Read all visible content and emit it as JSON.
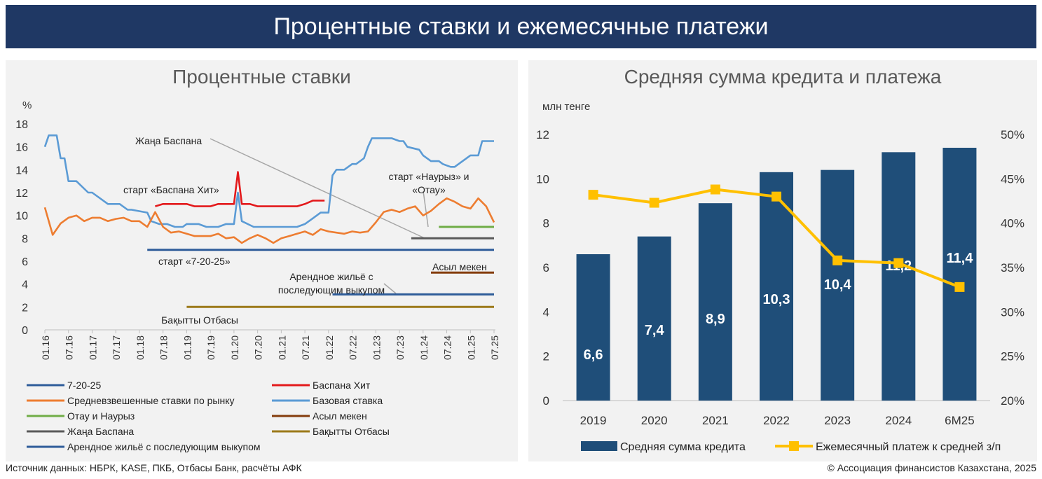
{
  "banner_title": "Процентные ставки и ежемесячные платежи",
  "footer": {
    "source": "Источник данных: НБРК, KASE, ПКБ, Отбасы Банк, расчёты АФК",
    "copyright": "© Ассоциация финансистов Казахстана, 2025"
  },
  "chart_data": [
    {
      "type": "line",
      "title": "Процентные ставки",
      "ylabel": "%",
      "ylim": [
        0,
        18
      ],
      "yticks": [
        0,
        2,
        4,
        6,
        8,
        10,
        12,
        14,
        16,
        18
      ],
      "x_range": [
        "01.16",
        "07.25"
      ],
      "xticks": [
        "01.16",
        "07.16",
        "01.17",
        "07.17",
        "01.18",
        "07.18",
        "01.19",
        "07.19",
        "01.20",
        "07.20",
        "01.21",
        "07.21",
        "01.22",
        "07.22",
        "01.23",
        "07.23",
        "01.24",
        "07.24",
        "01.25",
        "07.25"
      ],
      "series": [
        {
          "name": "7-20-25",
          "color": "#2e5c99",
          "x": [
            "03.18",
            "07.25"
          ],
          "y": [
            7,
            7
          ]
        },
        {
          "name": "Баспана Хит",
          "color": "#e31a1c",
          "x": [
            "05.18",
            "07.18",
            "09.18",
            "11.18",
            "01.19",
            "03.19",
            "05.19",
            "07.19",
            "09.19",
            "11.19",
            "01.20",
            "02.20",
            "03.20",
            "05.20",
            "07.20",
            "09.20",
            "11.20",
            "01.21",
            "03.21",
            "05.21",
            "07.21",
            "09.21",
            "11.21",
            "12.21"
          ],
          "y": [
            10.8,
            11.0,
            11.0,
            11.0,
            11.0,
            10.8,
            10.8,
            10.8,
            11.0,
            11.0,
            11.0,
            13.8,
            11.0,
            11.0,
            10.8,
            10.8,
            10.8,
            10.8,
            10.8,
            10.8,
            11.0,
            11.3,
            11.3,
            11.3
          ]
        },
        {
          "name": "Средневзвешенные ставки по рынку",
          "color": "#ed7d31",
          "x": [
            "01.16",
            "03.16",
            "05.16",
            "07.16",
            "09.16",
            "11.16",
            "01.17",
            "03.17",
            "05.17",
            "07.17",
            "09.17",
            "11.17",
            "01.18",
            "03.18",
            "05.18",
            "07.18",
            "09.18",
            "11.18",
            "01.19",
            "03.19",
            "05.19",
            "07.19",
            "09.19",
            "11.19",
            "01.20",
            "03.20",
            "05.20",
            "07.20",
            "09.20",
            "11.20",
            "01.21",
            "03.21",
            "05.21",
            "07.21",
            "09.21",
            "11.21",
            "01.22",
            "03.22",
            "05.22",
            "07.22",
            "09.22",
            "11.22",
            "01.23",
            "03.23",
            "05.23",
            "07.23",
            "09.23",
            "11.23",
            "01.24",
            "03.24",
            "05.24",
            "07.24",
            "09.24",
            "11.24",
            "01.25",
            "03.25",
            "05.25",
            "07.25"
          ],
          "y": [
            10.7,
            8.3,
            9.3,
            9.8,
            10.0,
            9.5,
            9.8,
            9.8,
            9.5,
            9.7,
            9.8,
            9.5,
            9.5,
            9.0,
            10.3,
            9.0,
            8.5,
            8.6,
            8.4,
            8.2,
            8.2,
            8.2,
            8.4,
            8.0,
            8.1,
            7.6,
            8.0,
            8.3,
            8.0,
            7.6,
            8.0,
            8.2,
            8.4,
            8.6,
            8.3,
            8.8,
            8.6,
            8.5,
            8.4,
            8.6,
            8.5,
            8.6,
            9.4,
            10.3,
            10.5,
            10.3,
            10.6,
            10.8,
            10.0,
            10.4,
            11.0,
            11.5,
            11.2,
            10.8,
            10.6,
            11.5,
            10.8,
            9.4
          ]
        },
        {
          "name": "Базовая ставка",
          "color": "#5b9bd5",
          "x": [
            "01.16",
            "02.16",
            "03.16",
            "04.16",
            "05.16",
            "06.16",
            "07.16",
            "08.16",
            "09.16",
            "12.16",
            "01.17",
            "05.17",
            "08.17",
            "10.17",
            "11.17",
            "03.18",
            "04.18",
            "06.18",
            "08.18",
            "10.18",
            "12.18",
            "01.19",
            "04.19",
            "06.19",
            "09.19",
            "11.19",
            "01.20",
            "02.20",
            "03.20",
            "06.20",
            "09.20",
            "12.20",
            "03.21",
            "05.21",
            "07.21",
            "09.21",
            "11.21",
            "12.21",
            "01.22",
            "02.22",
            "03.22",
            "05.22",
            "07.22",
            "08.22",
            "10.22",
            "11.22",
            "12.22",
            "05.23",
            "07.23",
            "08.23",
            "09.23",
            "12.23",
            "01.24",
            "03.24",
            "05.24",
            "06.24",
            "08.24",
            "09.24",
            "01.25",
            "03.25",
            "04.25",
            "07.25"
          ],
          "y": [
            16,
            17,
            17,
            17,
            15,
            15,
            13,
            13,
            13,
            12,
            12,
            11,
            11,
            10.5,
            10.5,
            10.25,
            9.5,
            9.25,
            9.25,
            9.0,
            9.0,
            9.25,
            9.25,
            9.0,
            9.0,
            9.25,
            9.25,
            12.0,
            9.5,
            9.0,
            9.0,
            9.0,
            9.0,
            9.0,
            9.25,
            9.75,
            10.25,
            10.25,
            10.25,
            13.5,
            14.0,
            14.0,
            14.5,
            14.5,
            15.0,
            16.0,
            16.75,
            16.75,
            16.5,
            16.5,
            16.0,
            15.75,
            15.25,
            14.75,
            14.75,
            14.5,
            14.25,
            14.25,
            15.25,
            15.25,
            16.5,
            16.5
          ]
        },
        {
          "name": "Отау и Наурыз",
          "color": "#70ad47",
          "x": [
            "05.24",
            "07.25"
          ],
          "y": [
            9,
            9
          ]
        },
        {
          "name": "Асыл мекен",
          "color": "#843c0c",
          "x": [
            "03.24",
            "07.25"
          ],
          "y": [
            5,
            5
          ]
        },
        {
          "name": "Жаңа Баспана",
          "color": "#595959",
          "x": [
            "10.23",
            "07.25"
          ],
          "y": [
            8,
            8
          ]
        },
        {
          "name": "Бақытты Отбасы",
          "color": "#9c7a1a",
          "x": [
            "01.19",
            "07.25"
          ],
          "y": [
            2,
            2
          ]
        },
        {
          "name": "Арендное жильё с последующим выкупом",
          "color": "#2e5c99",
          "x": [
            "02.22",
            "07.25"
          ],
          "y": [
            3.1,
            3.1
          ]
        }
      ],
      "annotations": [
        {
          "text": "Жаңа Баспана"
        },
        {
          "text": "старт «Баспана Хит»"
        },
        {
          "text": "старт «7-20-25»"
        },
        {
          "text_lines": [
            "старт «Наурыз» и",
            "«Отау»"
          ]
        },
        {
          "text": "Асыл мекен"
        },
        {
          "text_lines": [
            "Арендное жильё с",
            "последующим выкупом"
          ]
        },
        {
          "text": "Бақытты Отбасы"
        }
      ]
    },
    {
      "type": "bar",
      "title": "Средняя сумма кредита и платежа",
      "ylabel": "млн тенге",
      "ylim": [
        0,
        12
      ],
      "yticks": [
        0,
        2,
        4,
        6,
        8,
        10,
        12
      ],
      "y2lim": [
        20,
        50
      ],
      "y2ticks": [
        "20%",
        "25%",
        "30%",
        "35%",
        "40%",
        "45%",
        "50%"
      ],
      "categories": [
        "2019",
        "2020",
        "2021",
        "2022",
        "2023",
        "2024",
        "6M25"
      ],
      "series": [
        {
          "name": "Средняя сумма кредита",
          "color": "#1f4e79",
          "values": [
            6.6,
            7.4,
            8.9,
            10.3,
            10.4,
            11.2,
            11.4
          ],
          "labels": [
            "6,6",
            "7,4",
            "8,9",
            "10,3",
            "10,4",
            "11,2",
            "11,4"
          ]
        },
        {
          "name": "Ежемесячный платеж к средней з/п",
          "color": "#ffc000",
          "axis": "right",
          "values": [
            43.2,
            42.3,
            43.8,
            43.0,
            35.8,
            35.5,
            32.8
          ]
        }
      ]
    }
  ]
}
